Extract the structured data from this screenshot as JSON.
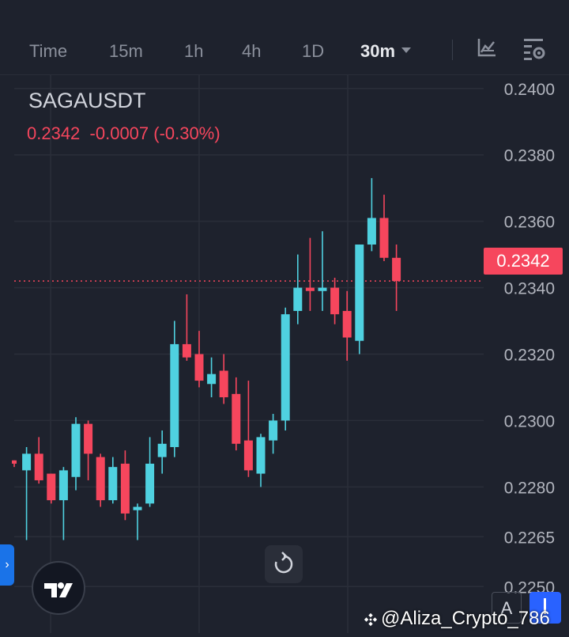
{
  "tabs": [
    {
      "label": "Time",
      "active": false
    },
    {
      "label": "15m",
      "active": false
    },
    {
      "label": "1h",
      "active": false
    },
    {
      "label": "4h",
      "active": false
    },
    {
      "label": "1D",
      "active": false
    },
    {
      "label": "30m",
      "active": true
    }
  ],
  "toolbar": {
    "indicator_icon": "chart-indicator-icon",
    "settings_icon": "chart-settings-icon"
  },
  "symbol": "SAGAUSDT",
  "quote": {
    "price": "0.2342",
    "change": "-0.0007",
    "change_pct": "(-0.30%)"
  },
  "current_price_label": "0.2342",
  "bottom": {
    "side_handle": "›",
    "a_button": "A",
    "watermark": "@Aliza_Crypto_786"
  },
  "colors": {
    "background": "#1e222d",
    "up": "#4fd1e0",
    "down": "#f6465d",
    "grid": "#2a2e39",
    "axis_text": "#b2b5be"
  },
  "chart_data": {
    "type": "candlestick",
    "y_axis_labels": [
      "0.2400",
      "0.2380",
      "0.2360",
      "0.2340",
      "0.2320",
      "0.2300",
      "0.2280",
      "0.2265",
      "0.2250"
    ],
    "ylim": [
      0.2236,
      0.2404
    ],
    "current_price": 0.2342,
    "candles": [
      {
        "o": 0.2288,
        "h": 0.2288,
        "l": 0.2286,
        "c": 0.2287
      },
      {
        "o": 0.2285,
        "h": 0.2292,
        "l": 0.2264,
        "c": 0.229
      },
      {
        "o": 0.229,
        "h": 0.2295,
        "l": 0.2281,
        "c": 0.2282
      },
      {
        "o": 0.2284,
        "h": 0.2284,
        "l": 0.2275,
        "c": 0.2276
      },
      {
        "o": 0.2276,
        "h": 0.2286,
        "l": 0.2264,
        "c": 0.2285
      },
      {
        "o": 0.2283,
        "h": 0.2301,
        "l": 0.2279,
        "c": 0.2299
      },
      {
        "o": 0.2299,
        "h": 0.23,
        "l": 0.2282,
        "c": 0.229
      },
      {
        "o": 0.2289,
        "h": 0.229,
        "l": 0.2274,
        "c": 0.2276
      },
      {
        "o": 0.2276,
        "h": 0.2289,
        "l": 0.2275,
        "c": 0.2286
      },
      {
        "o": 0.2287,
        "h": 0.2291,
        "l": 0.227,
        "c": 0.2272
      },
      {
        "o": 0.2273,
        "h": 0.2275,
        "l": 0.2264,
        "c": 0.2274
      },
      {
        "o": 0.2275,
        "h": 0.2295,
        "l": 0.2274,
        "c": 0.2287
      },
      {
        "o": 0.2289,
        "h": 0.2297,
        "l": 0.2284,
        "c": 0.2293
      },
      {
        "o": 0.2292,
        "h": 0.233,
        "l": 0.2289,
        "c": 0.2323
      },
      {
        "o": 0.2323,
        "h": 0.2338,
        "l": 0.2318,
        "c": 0.2319
      },
      {
        "o": 0.232,
        "h": 0.2327,
        "l": 0.231,
        "c": 0.2312
      },
      {
        "o": 0.2311,
        "h": 0.2319,
        "l": 0.2307,
        "c": 0.2314
      },
      {
        "o": 0.2315,
        "h": 0.232,
        "l": 0.2305,
        "c": 0.2307
      },
      {
        "o": 0.2308,
        "h": 0.2313,
        "l": 0.2291,
        "c": 0.2293
      },
      {
        "o": 0.2294,
        "h": 0.2312,
        "l": 0.2283,
        "c": 0.2285
      },
      {
        "o": 0.2284,
        "h": 0.2296,
        "l": 0.228,
        "c": 0.2295
      },
      {
        "o": 0.2294,
        "h": 0.2302,
        "l": 0.229,
        "c": 0.23
      },
      {
        "o": 0.23,
        "h": 0.2334,
        "l": 0.2297,
        "c": 0.2332
      },
      {
        "o": 0.2333,
        "h": 0.235,
        "l": 0.2329,
        "c": 0.234
      },
      {
        "o": 0.234,
        "h": 0.2355,
        "l": 0.2333,
        "c": 0.2339
      },
      {
        "o": 0.2339,
        "h": 0.2357,
        "l": 0.2333,
        "c": 0.234
      },
      {
        "o": 0.234,
        "h": 0.2343,
        "l": 0.2329,
        "c": 0.2332
      },
      {
        "o": 0.2333,
        "h": 0.2339,
        "l": 0.2318,
        "c": 0.2325
      },
      {
        "o": 0.2324,
        "h": 0.2353,
        "l": 0.232,
        "c": 0.2353
      },
      {
        "o": 0.2353,
        "h": 0.2373,
        "l": 0.2351,
        "c": 0.2361
      },
      {
        "o": 0.2361,
        "h": 0.2368,
        "l": 0.2348,
        "c": 0.2349
      },
      {
        "o": 0.2349,
        "h": 0.2353,
        "l": 0.2333,
        "c": 0.2342
      }
    ]
  }
}
